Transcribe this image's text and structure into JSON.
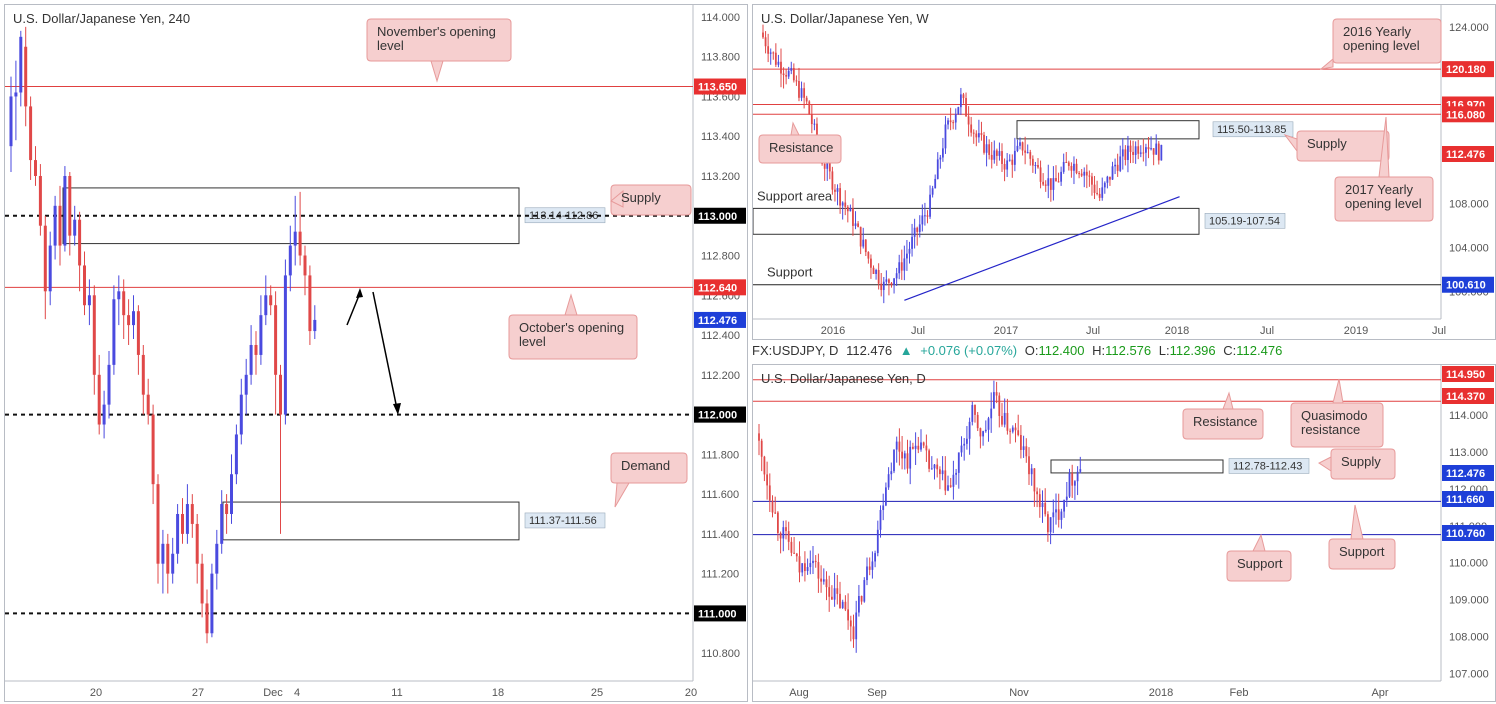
{
  "colors": {
    "up": "#4a4adf",
    "down": "#e04848",
    "red_line": "#e04040",
    "blue_line": "#1c1cb4",
    "callout_fill": "#f6cfcf",
    "callout_stroke": "#e79a9a",
    "zone_label_fill": "#dde8f3",
    "price_tag_red": "#e83030",
    "price_tag_blue": "#1e3fd8",
    "price_tag_black": "#000000"
  },
  "panels": {
    "h4": {
      "title": "U.S. Dollar/Japanese Yen, 240"
    },
    "weekly": {
      "title": "U.S. Dollar/Japanese Yen, W"
    },
    "daily": {
      "title": "U.S. Dollar/Japanese Yen, D",
      "header": {
        "symbol": "FX:USDJPY, D",
        "last": "112.476",
        "change": "+0.076 (+0.07%)",
        "o_label": "O:",
        "o": "112.400",
        "h_label": "H:",
        "h": "112.576",
        "l_label": "L:",
        "l": "112.396",
        "c_label": "C:",
        "c": "112.476"
      }
    }
  },
  "chart_data": [
    {
      "type": "candlestick",
      "title": "U.S. Dollar/Japanese Yen, 240",
      "ylim": [
        110.66,
        114.06
      ],
      "x_ticks": [
        "20",
        "27",
        "Dec",
        "4",
        "11",
        "18",
        "25",
        "20"
      ],
      "y_ticks": [
        "114.000",
        "113.800",
        "113.600",
        "113.400",
        "113.200",
        "112.800",
        "112.600",
        "112.400",
        "112.200",
        "111.800",
        "111.600",
        "111.400",
        "111.200",
        "110.800"
      ],
      "levels": [
        {
          "value": 113.65,
          "label": "113.650",
          "style": "solid-red",
          "tag": "red"
        },
        {
          "value": 113.0,
          "label": "113.000",
          "style": "dashed-black",
          "tag": "black"
        },
        {
          "value": 112.64,
          "label": "112.640",
          "style": "solid-red",
          "tag": "red"
        },
        {
          "value": 112.476,
          "label": "112.476",
          "style": "none",
          "tag": "blue"
        },
        {
          "value": 112.0,
          "label": "112.000",
          "style": "dashed-black",
          "tag": "black"
        },
        {
          "value": 112.0,
          "label": "112.000",
          "style": "none",
          "tag": "black"
        },
        {
          "value": 111.0,
          "label": "111.000",
          "style": "dashed-black",
          "tag": "black"
        }
      ],
      "zones": [
        {
          "label": "113.14-112.86",
          "top": 113.14,
          "bottom": 112.86
        },
        {
          "label": "111.37-111.56",
          "top": 111.56,
          "bottom": 111.37
        }
      ],
      "annotations": [
        "November's opening level",
        "Supply",
        "October's opening level",
        "Demand"
      ],
      "candles": [
        [
          113.35,
          113.6,
          113.22,
          113.7
        ],
        [
          113.6,
          113.62,
          113.38,
          113.78
        ],
        [
          113.62,
          113.9,
          113.55,
          113.93
        ],
        [
          113.85,
          113.55,
          113.45,
          113.95
        ],
        [
          113.55,
          113.28,
          113.18,
          113.6
        ],
        [
          113.28,
          113.2,
          113.15,
          113.35
        ],
        [
          113.2,
          112.95,
          112.9,
          113.26
        ],
        [
          112.95,
          112.62,
          112.48,
          113.0
        ],
        [
          112.62,
          112.85,
          112.55,
          112.92
        ],
        [
          112.85,
          113.05,
          112.78,
          113.1
        ],
        [
          113.05,
          112.85,
          112.75,
          113.15
        ],
        [
          112.85,
          113.2,
          112.82,
          113.25
        ],
        [
          113.2,
          112.9,
          112.8,
          113.22
        ],
        [
          112.9,
          112.98,
          112.85,
          113.05
        ],
        [
          112.98,
          112.75,
          112.62,
          113.02
        ],
        [
          112.75,
          112.55,
          112.5,
          112.82
        ],
        [
          112.55,
          112.6,
          112.45,
          112.68
        ],
        [
          112.6,
          112.2,
          112.1,
          112.65
        ],
        [
          112.2,
          111.95,
          111.9,
          112.3
        ],
        [
          111.95,
          112.05,
          111.88,
          112.12
        ],
        [
          112.05,
          112.25,
          111.98,
          112.32
        ],
        [
          112.25,
          112.58,
          112.2,
          112.65
        ],
        [
          112.58,
          112.62,
          112.45,
          112.7
        ],
        [
          112.62,
          112.5,
          112.38,
          112.68
        ],
        [
          112.5,
          112.45,
          112.35,
          112.58
        ],
        [
          112.45,
          112.52,
          112.38,
          112.6
        ],
        [
          112.52,
          112.3,
          112.2,
          112.55
        ],
        [
          112.3,
          112.1,
          112.0,
          112.35
        ],
        [
          112.1,
          112.0,
          111.95,
          112.18
        ],
        [
          112.0,
          111.65,
          111.55,
          112.05
        ],
        [
          111.65,
          111.25,
          111.15,
          111.7
        ],
        [
          111.25,
          111.35,
          111.1,
          111.42
        ],
        [
          111.35,
          111.2,
          111.1,
          111.4
        ],
        [
          111.2,
          111.3,
          111.15,
          111.38
        ],
        [
          111.3,
          111.5,
          111.25,
          111.55
        ],
        [
          111.5,
          111.4,
          111.35,
          111.58
        ],
        [
          111.4,
          111.55,
          111.35,
          111.65
        ],
        [
          111.55,
          111.45,
          111.38,
          111.6
        ],
        [
          111.45,
          111.25,
          111.15,
          111.5
        ],
        [
          111.25,
          111.05,
          110.98,
          111.3
        ],
        [
          111.05,
          110.9,
          110.85,
          111.12
        ],
        [
          110.9,
          111.2,
          110.88,
          111.25
        ],
        [
          111.2,
          111.35,
          111.12,
          111.42
        ],
        [
          111.35,
          111.55,
          111.3,
          111.62
        ],
        [
          111.55,
          111.5,
          111.4,
          111.6
        ],
        [
          111.5,
          111.7,
          111.45,
          111.8
        ],
        [
          111.7,
          111.9,
          111.65,
          111.95
        ],
        [
          111.9,
          112.1,
          111.85,
          112.18
        ],
        [
          112.1,
          112.2,
          112.0,
          112.28
        ],
        [
          112.2,
          112.35,
          112.15,
          112.45
        ],
        [
          112.35,
          112.3,
          112.2,
          112.42
        ],
        [
          112.3,
          112.5,
          112.25,
          112.6
        ],
        [
          112.5,
          112.6,
          112.45,
          112.7
        ],
        [
          112.6,
          112.55,
          112.5,
          112.65
        ],
        [
          112.55,
          112.2,
          112.0,
          112.62
        ],
        [
          112.2,
          112.0,
          111.4,
          112.25
        ],
        [
          112.0,
          112.7,
          111.95,
          112.78
        ],
        [
          112.7,
          112.85,
          112.62,
          112.95
        ],
        [
          112.85,
          112.92,
          112.75,
          113.1
        ],
        [
          112.92,
          112.8,
          112.75,
          113.12
        ],
        [
          112.8,
          112.7,
          112.6,
          112.85
        ],
        [
          112.7,
          112.42,
          112.35,
          112.75
        ],
        [
          112.42,
          112.476,
          112.38,
          112.55
        ]
      ]
    },
    {
      "type": "candlestick",
      "title": "U.S. Dollar/Japanese Yen, W",
      "ylim": [
        97.5,
        126.0
      ],
      "x_ticks": [
        "2016",
        "Jul",
        "2017",
        "Jul",
        "2018",
        "Jul",
        "2019",
        "Jul"
      ],
      "y_ticks": [
        "124.000",
        "108.000",
        "104.000",
        "100.000"
      ],
      "levels": [
        {
          "value": 120.18,
          "label": "120.180",
          "style": "solid-red",
          "tag": "red"
        },
        {
          "value": 116.97,
          "label": "116.970",
          "style": "solid-red",
          "tag": "red"
        },
        {
          "value": 116.08,
          "label": "116.080",
          "style": "solid-red",
          "tag": "red"
        },
        {
          "value": 112.476,
          "label": "112.476",
          "style": "none",
          "tag": "red"
        },
        {
          "value": 100.61,
          "label": "100.610",
          "style": "solid-black",
          "tag": "blue"
        }
      ],
      "zones": [
        {
          "label": "115.50-113.85",
          "top": 115.5,
          "bottom": 113.85
        },
        {
          "label": "105.19-107.54",
          "top": 107.54,
          "bottom": 105.19
        }
      ],
      "annotations": [
        "2016 Yearly opening level",
        "Resistance",
        "Supply",
        "2017 Yearly opening level",
        "Support area",
        "Support"
      ],
      "trendline": [
        [
          0.22,
          99.2
        ],
        [
          0.62,
          108.6
        ]
      ]
    },
    {
      "type": "candlestick",
      "title": "U.S. Dollar/Japanese Yen, D",
      "ylim": [
        106.8,
        115.35
      ],
      "x_ticks": [
        "Aug",
        "Sep",
        "Nov",
        "2018",
        "Feb",
        "Apr"
      ],
      "y_ticks": [
        "114.000",
        "113.000",
        "112.000",
        "111.000",
        "110.000",
        "109.000",
        "108.000",
        "107.000"
      ],
      "levels": [
        {
          "value": 114.95,
          "label": "114.950",
          "style": "solid-red",
          "tag": "red"
        },
        {
          "value": 114.37,
          "label": "114.370",
          "style": "solid-red",
          "tag": "red"
        },
        {
          "value": 112.476,
          "label": "112.476",
          "style": "none",
          "tag": "blue"
        },
        {
          "value": 111.66,
          "label": "111.660",
          "style": "solid-blue",
          "tag": "blue"
        },
        {
          "value": 110.76,
          "label": "110.760",
          "style": "solid-blue",
          "tag": "blue"
        }
      ],
      "zones": [
        {
          "label": "112.78-112.43",
          "top": 112.78,
          "bottom": 112.43
        }
      ],
      "annotations": [
        "Resistance",
        "Quasimodo resistance",
        "Supply",
        "Support",
        "Support"
      ]
    }
  ]
}
